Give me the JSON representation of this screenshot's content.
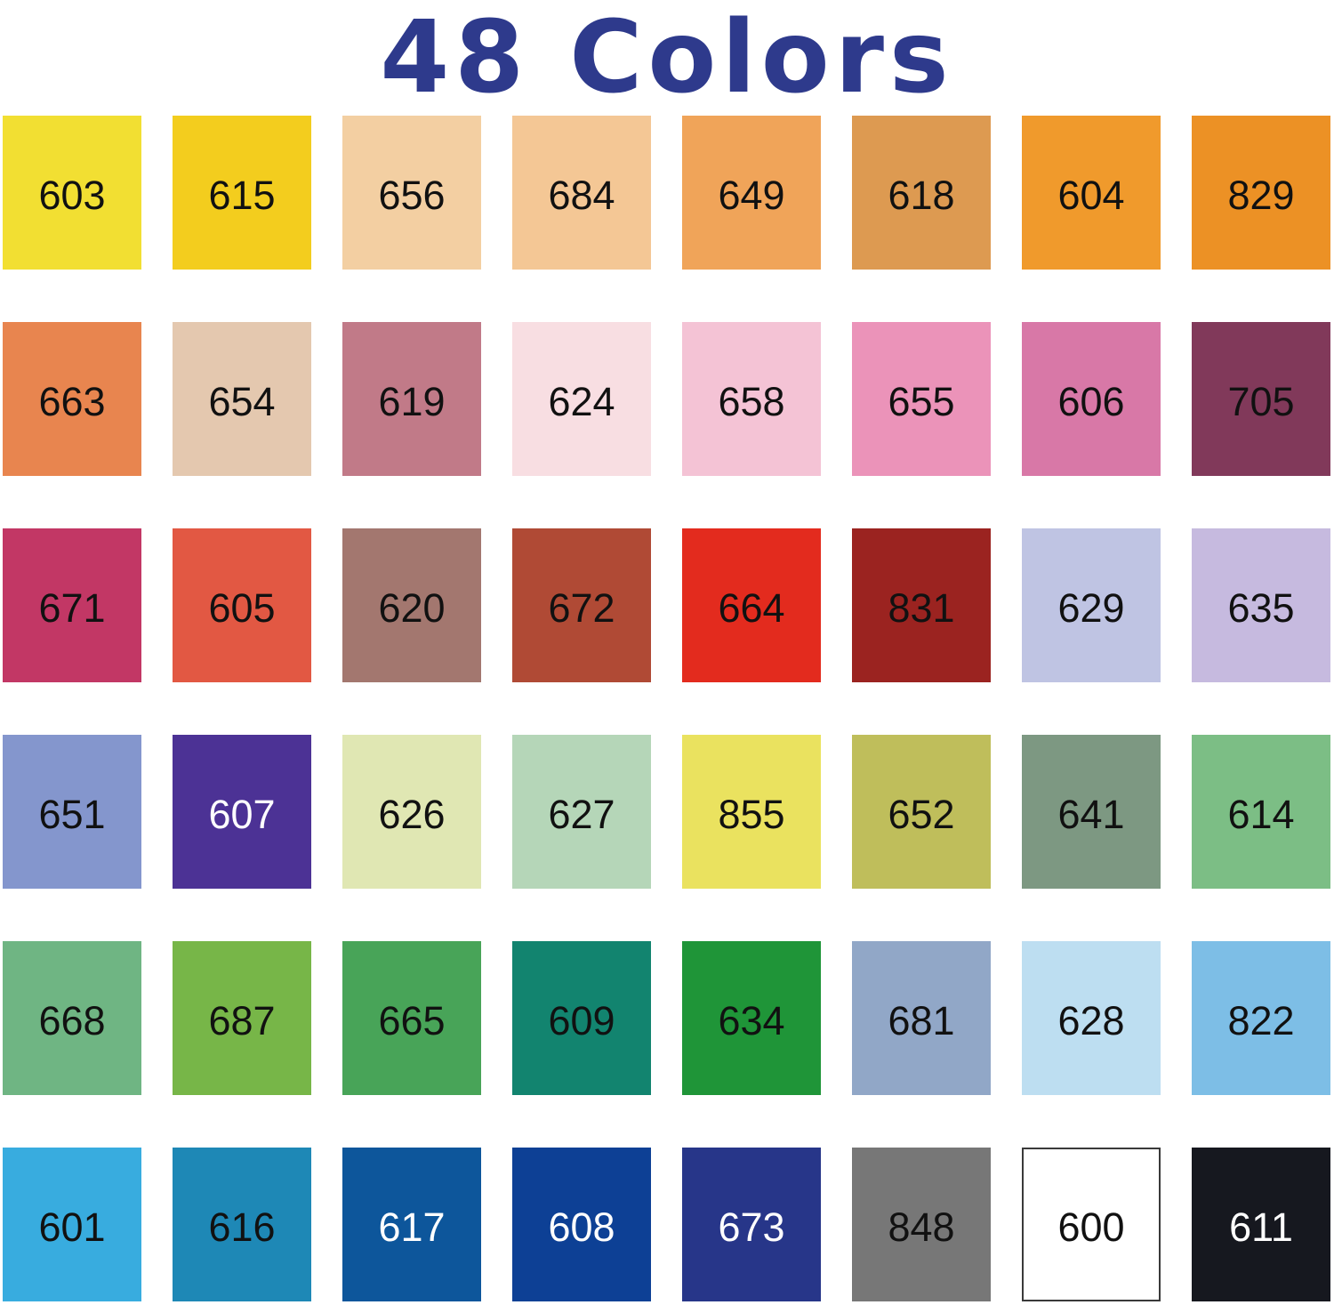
{
  "title": {
    "text": "48 Colors",
    "color": "#2e3a8c"
  },
  "chart_data": {
    "type": "table",
    "title": "48 Colors",
    "layout": {
      "columns": 8,
      "rows": 6,
      "legend": "each cell = marker color swatch with its color code"
    },
    "swatches": [
      {
        "label": "603",
        "color": "#f2df32",
        "text": "#111111"
      },
      {
        "label": "615",
        "color": "#f3cd1e",
        "text": "#111111"
      },
      {
        "label": "656",
        "color": "#f3cfa2",
        "text": "#111111"
      },
      {
        "label": "684",
        "color": "#f4c795",
        "text": "#111111"
      },
      {
        "label": "649",
        "color": "#f0a459",
        "text": "#111111"
      },
      {
        "label": "618",
        "color": "#dd9a51",
        "text": "#111111"
      },
      {
        "label": "604",
        "color": "#f09a2c",
        "text": "#111111"
      },
      {
        "label": "829",
        "color": "#ec9125",
        "text": "#111111"
      },
      {
        "label": "663",
        "color": "#e8854f",
        "text": "#111111"
      },
      {
        "label": "654",
        "color": "#e4c8af",
        "text": "#111111"
      },
      {
        "label": "619",
        "color": "#c17a88",
        "text": "#111111"
      },
      {
        "label": "624",
        "color": "#f8dee2",
        "text": "#111111"
      },
      {
        "label": "658",
        "color": "#f4c3d5",
        "text": "#111111"
      },
      {
        "label": "655",
        "color": "#eb93b9",
        "text": "#111111"
      },
      {
        "label": "606",
        "color": "#d878a7",
        "text": "#111111"
      },
      {
        "label": "705",
        "color": "#81395a",
        "text": "#111111"
      },
      {
        "label": "671",
        "color": "#c23765",
        "text": "#111111"
      },
      {
        "label": "605",
        "color": "#e25843",
        "text": "#111111"
      },
      {
        "label": "620",
        "color": "#a3776f",
        "text": "#111111"
      },
      {
        "label": "672",
        "color": "#b04a35",
        "text": "#111111"
      },
      {
        "label": "664",
        "color": "#e32b1e",
        "text": "#111111"
      },
      {
        "label": "831",
        "color": "#9b2320",
        "text": "#111111"
      },
      {
        "label": "629",
        "color": "#bfc4e3",
        "text": "#111111"
      },
      {
        "label": "635",
        "color": "#c6badf",
        "text": "#111111"
      },
      {
        "label": "651",
        "color": "#8496cd",
        "text": "#111111"
      },
      {
        "label": "607",
        "color": "#4c3295",
        "text": "#ffffff"
      },
      {
        "label": "626",
        "color": "#e0e7b3",
        "text": "#111111"
      },
      {
        "label": "627",
        "color": "#b5d6b8",
        "text": "#111111"
      },
      {
        "label": "855",
        "color": "#eae25f",
        "text": "#111111"
      },
      {
        "label": "652",
        "color": "#bfbe5b",
        "text": "#111111"
      },
      {
        "label": "641",
        "color": "#7d9882",
        "text": "#111111"
      },
      {
        "label": "614",
        "color": "#7cbe85",
        "text": "#111111"
      },
      {
        "label": "668",
        "color": "#6fb583",
        "text": "#111111"
      },
      {
        "label": "687",
        "color": "#77b648",
        "text": "#111111"
      },
      {
        "label": "665",
        "color": "#48a458",
        "text": "#111111"
      },
      {
        "label": "609",
        "color": "#12846f",
        "text": "#111111"
      },
      {
        "label": "634",
        "color": "#1f9538",
        "text": "#111111"
      },
      {
        "label": "681",
        "color": "#91a7c7",
        "text": "#111111"
      },
      {
        "label": "628",
        "color": "#bddef1",
        "text": "#111111"
      },
      {
        "label": "822",
        "color": "#7dbee6",
        "text": "#111111"
      },
      {
        "label": "601",
        "color": "#38acdf",
        "text": "#111111"
      },
      {
        "label": "616",
        "color": "#1e88b6",
        "text": "#111111"
      },
      {
        "label": "617",
        "color": "#0d569b",
        "text": "#ffffff"
      },
      {
        "label": "608",
        "color": "#0d4095",
        "text": "#ffffff"
      },
      {
        "label": "673",
        "color": "#273689",
        "text": "#ffffff"
      },
      {
        "label": "848",
        "color": "#777777",
        "text": "#111111"
      },
      {
        "label": "600",
        "color": "#ffffff",
        "text": "#111111",
        "border": "#3a3a3a"
      },
      {
        "label": "611",
        "color": "#16181f",
        "text": "#ffffff"
      }
    ]
  }
}
